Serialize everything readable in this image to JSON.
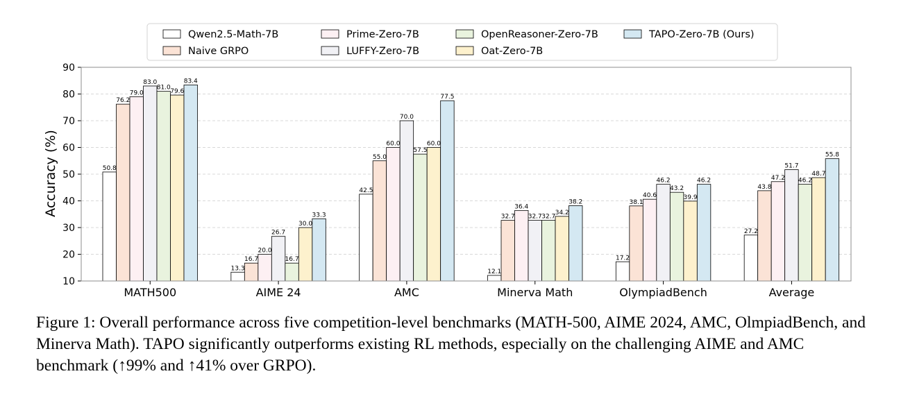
{
  "chart_data": {
    "type": "bar",
    "title": "",
    "xlabel": "",
    "ylabel": "Accuracy (%)",
    "ylim": [
      10,
      90
    ],
    "yticks": [
      "10",
      "20",
      "30",
      "40",
      "50",
      "60",
      "70",
      "80",
      "90"
    ],
    "grid": "horizontal dashed",
    "legend_position": "top",
    "categories": [
      "MATH500",
      "AIME 24",
      "AMC",
      "Minerva Math",
      "OlympiadBench",
      "Average"
    ],
    "series": [
      {
        "name": "Qwen2.5-Math-7B",
        "color": "#ffffff",
        "values": [
          50.8,
          13.3,
          42.5,
          12.1,
          17.2,
          27.2
        ],
        "labels": [
          "50.8",
          "13.3",
          "42.5",
          "12.1",
          "17.2",
          "27.2"
        ]
      },
      {
        "name": "Naive GRPO",
        "color": "#fbe3d6",
        "values": [
          76.2,
          16.7,
          55.0,
          32.7,
          38.1,
          43.8
        ],
        "labels": [
          "76.2",
          "16.7",
          "55.0",
          "32.7",
          "38.1",
          "43.8"
        ]
      },
      {
        "name": "Prime-Zero-7B",
        "color": "#fdf0f3",
        "values": [
          79.0,
          20.0,
          60.0,
          36.4,
          40.6,
          47.2
        ],
        "labels": [
          "79.0",
          "20.0",
          "60.0",
          "36.4",
          "40.6",
          "47.2"
        ]
      },
      {
        "name": "LUFFY-Zero-7B",
        "color": "#f1f1f5",
        "values": [
          83.0,
          26.7,
          70.0,
          32.7,
          46.2,
          51.7
        ],
        "labels": [
          "83.0",
          "26.7",
          "70.0",
          "32.7",
          "46.2",
          "51.7"
        ]
      },
      {
        "name": "OpenReasoner-Zero-7B",
        "color": "#e9f3de",
        "values": [
          81.0,
          16.7,
          57.5,
          32.7,
          43.2,
          46.2
        ],
        "labels": [
          "81.0",
          "16.7",
          "57.5",
          "32.7",
          "43.2",
          "46.2"
        ]
      },
      {
        "name": "Oat-Zero-7B",
        "color": "#fdf1cd",
        "values": [
          79.6,
          30.0,
          60.0,
          34.2,
          39.9,
          48.7
        ],
        "labels": [
          "79.6",
          "30.0",
          "60.0",
          "34.2",
          "39.9",
          "48.7"
        ]
      },
      {
        "name": "TAPO-Zero-7B (Ours)",
        "color": "#d4e8f2",
        "values": [
          83.4,
          33.3,
          77.5,
          38.2,
          46.2,
          55.8
        ],
        "labels": [
          "83.4",
          "33.3",
          "77.5",
          "38.2",
          "46.2",
          "55.8"
        ]
      }
    ]
  },
  "caption": "Figure 1: Overall performance across five competition-level benchmarks (MATH-500, AIME 2024, AMC, OlmpiadBench, and Minerva Math). TAPO significantly outperforms existing RL methods, especially on the challenging AIME and AMC benchmark (↑99% and ↑41% over GRPO)."
}
